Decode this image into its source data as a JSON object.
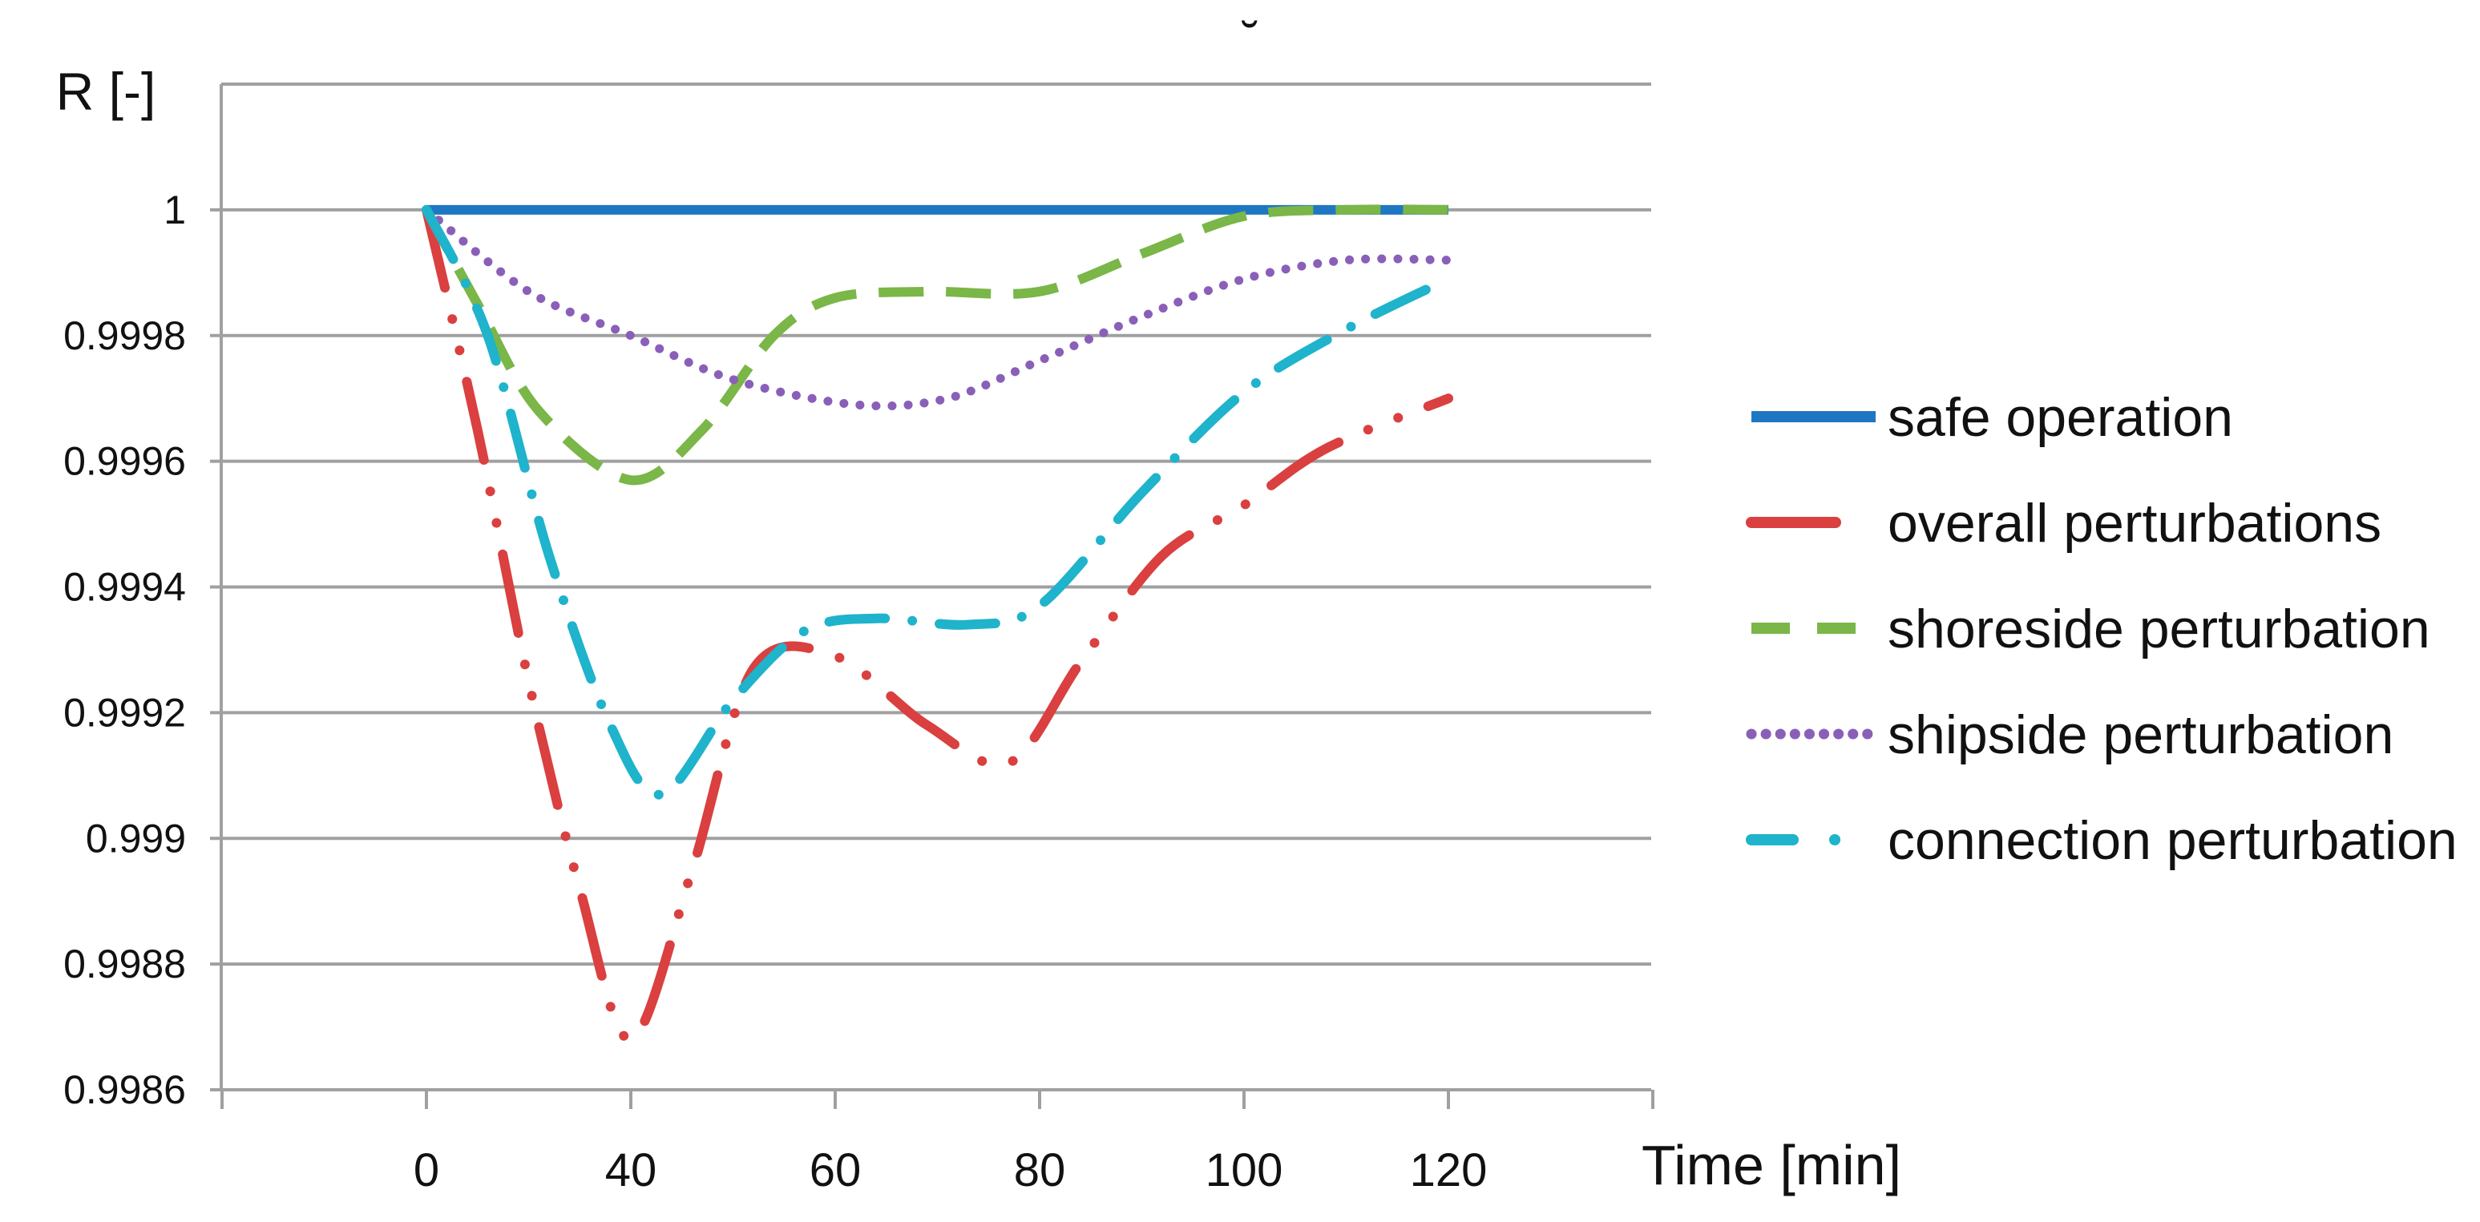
{
  "chart_data": {
    "type": "line",
    "ylabel": "R [-]",
    "xlabel": "Time [min]",
    "ylim": [
      0.9986,
      1.0002
    ],
    "y_ticks": [
      {
        "value": 1.0,
        "label": "1"
      },
      {
        "value": 0.9998,
        "label": "0.9998"
      },
      {
        "value": 0.9996,
        "label": "0.9996"
      },
      {
        "value": 0.9994,
        "label": "0.9994"
      },
      {
        "value": 0.9992,
        "label": "0.9992"
      },
      {
        "value": 0.999,
        "label": "0.999"
      },
      {
        "value": 0.9988,
        "label": "0.9988"
      },
      {
        "value": 0.9986,
        "label": "0.9986"
      }
    ],
    "x_ticks": [
      {
        "label": "0",
        "pos": 0
      },
      {
        "label": "40",
        "pos": 1
      },
      {
        "label": "60",
        "pos": 2
      },
      {
        "label": "80",
        "pos": 3
      },
      {
        "label": "100",
        "pos": 4
      },
      {
        "label": "120",
        "pos": 5
      }
    ],
    "x_range": [
      -1,
      6
    ],
    "grid": true,
    "legend_position": "right",
    "series": [
      {
        "name": "safe operation",
        "color": "#1f77c4",
        "dash": "solid",
        "points": [
          [
            0,
            1.0
          ],
          [
            5,
            1.0
          ]
        ]
      },
      {
        "name": "overall perturbations",
        "color": "#d9403f",
        "dash": "dashdotdot",
        "points": [
          [
            0,
            1.0
          ],
          [
            0.25,
            0.99965
          ],
          [
            0.5,
            0.99925
          ],
          [
            0.75,
            0.99892
          ],
          [
            1.0,
            0.99868
          ],
          [
            1.3,
            0.99895
          ],
          [
            1.6,
            0.99927
          ],
          [
            2.0,
            0.99929
          ],
          [
            2.45,
            0.99918
          ],
          [
            2.85,
            0.99912
          ],
          [
            3.2,
            0.99928
          ],
          [
            3.6,
            0.99945
          ],
          [
            4.0,
            0.99953
          ],
          [
            4.4,
            0.99962
          ],
          [
            5.0,
            0.9997
          ]
        ]
      },
      {
        "name": "shoreside perturbation",
        "color": "#7ab648",
        "dash": "dashed",
        "points": [
          [
            0,
            1.0
          ],
          [
            0.25,
            0.99985
          ],
          [
            0.55,
            0.99968
          ],
          [
            1.0,
            0.99957
          ],
          [
            1.35,
            0.99965
          ],
          [
            1.7,
            0.9998
          ],
          [
            2.0,
            0.99986
          ],
          [
            2.45,
            0.99987
          ],
          [
            3.0,
            0.99987
          ],
          [
            3.5,
            0.99993
          ],
          [
            4.0,
            0.99999
          ],
          [
            4.5,
            1.0
          ],
          [
            5.0,
            1.0
          ]
        ]
      },
      {
        "name": "shipside perturbation",
        "color": "#8a5fb8",
        "dash": "dotted",
        "points": [
          [
            0,
            1.0
          ],
          [
            0.5,
            0.99987
          ],
          [
            1.0,
            0.9998
          ],
          [
            1.5,
            0.99973
          ],
          [
            2.1,
            0.99969
          ],
          [
            2.55,
            0.9997
          ],
          [
            3.0,
            0.99976
          ],
          [
            3.5,
            0.99983
          ],
          [
            4.0,
            0.99989
          ],
          [
            4.5,
            0.99992
          ],
          [
            5.0,
            0.99992
          ]
        ]
      },
      {
        "name": "connection perturbation",
        "color": "#1fb3cc",
        "dash": "dashdot",
        "points": [
          [
            0,
            1.0
          ],
          [
            0.3,
            0.9998
          ],
          [
            0.6,
            0.99945
          ],
          [
            0.9,
            0.99918
          ],
          [
            1.15,
            0.99907
          ],
          [
            1.5,
            0.99922
          ],
          [
            1.85,
            0.99933
          ],
          [
            2.2,
            0.99935
          ],
          [
            2.65,
            0.99934
          ],
          [
            3.0,
            0.99937
          ],
          [
            3.5,
            0.99955
          ],
          [
            4.0,
            0.99971
          ],
          [
            4.5,
            0.99981
          ],
          [
            5.0,
            0.99989
          ]
        ]
      }
    ],
    "annotation": "˘"
  }
}
